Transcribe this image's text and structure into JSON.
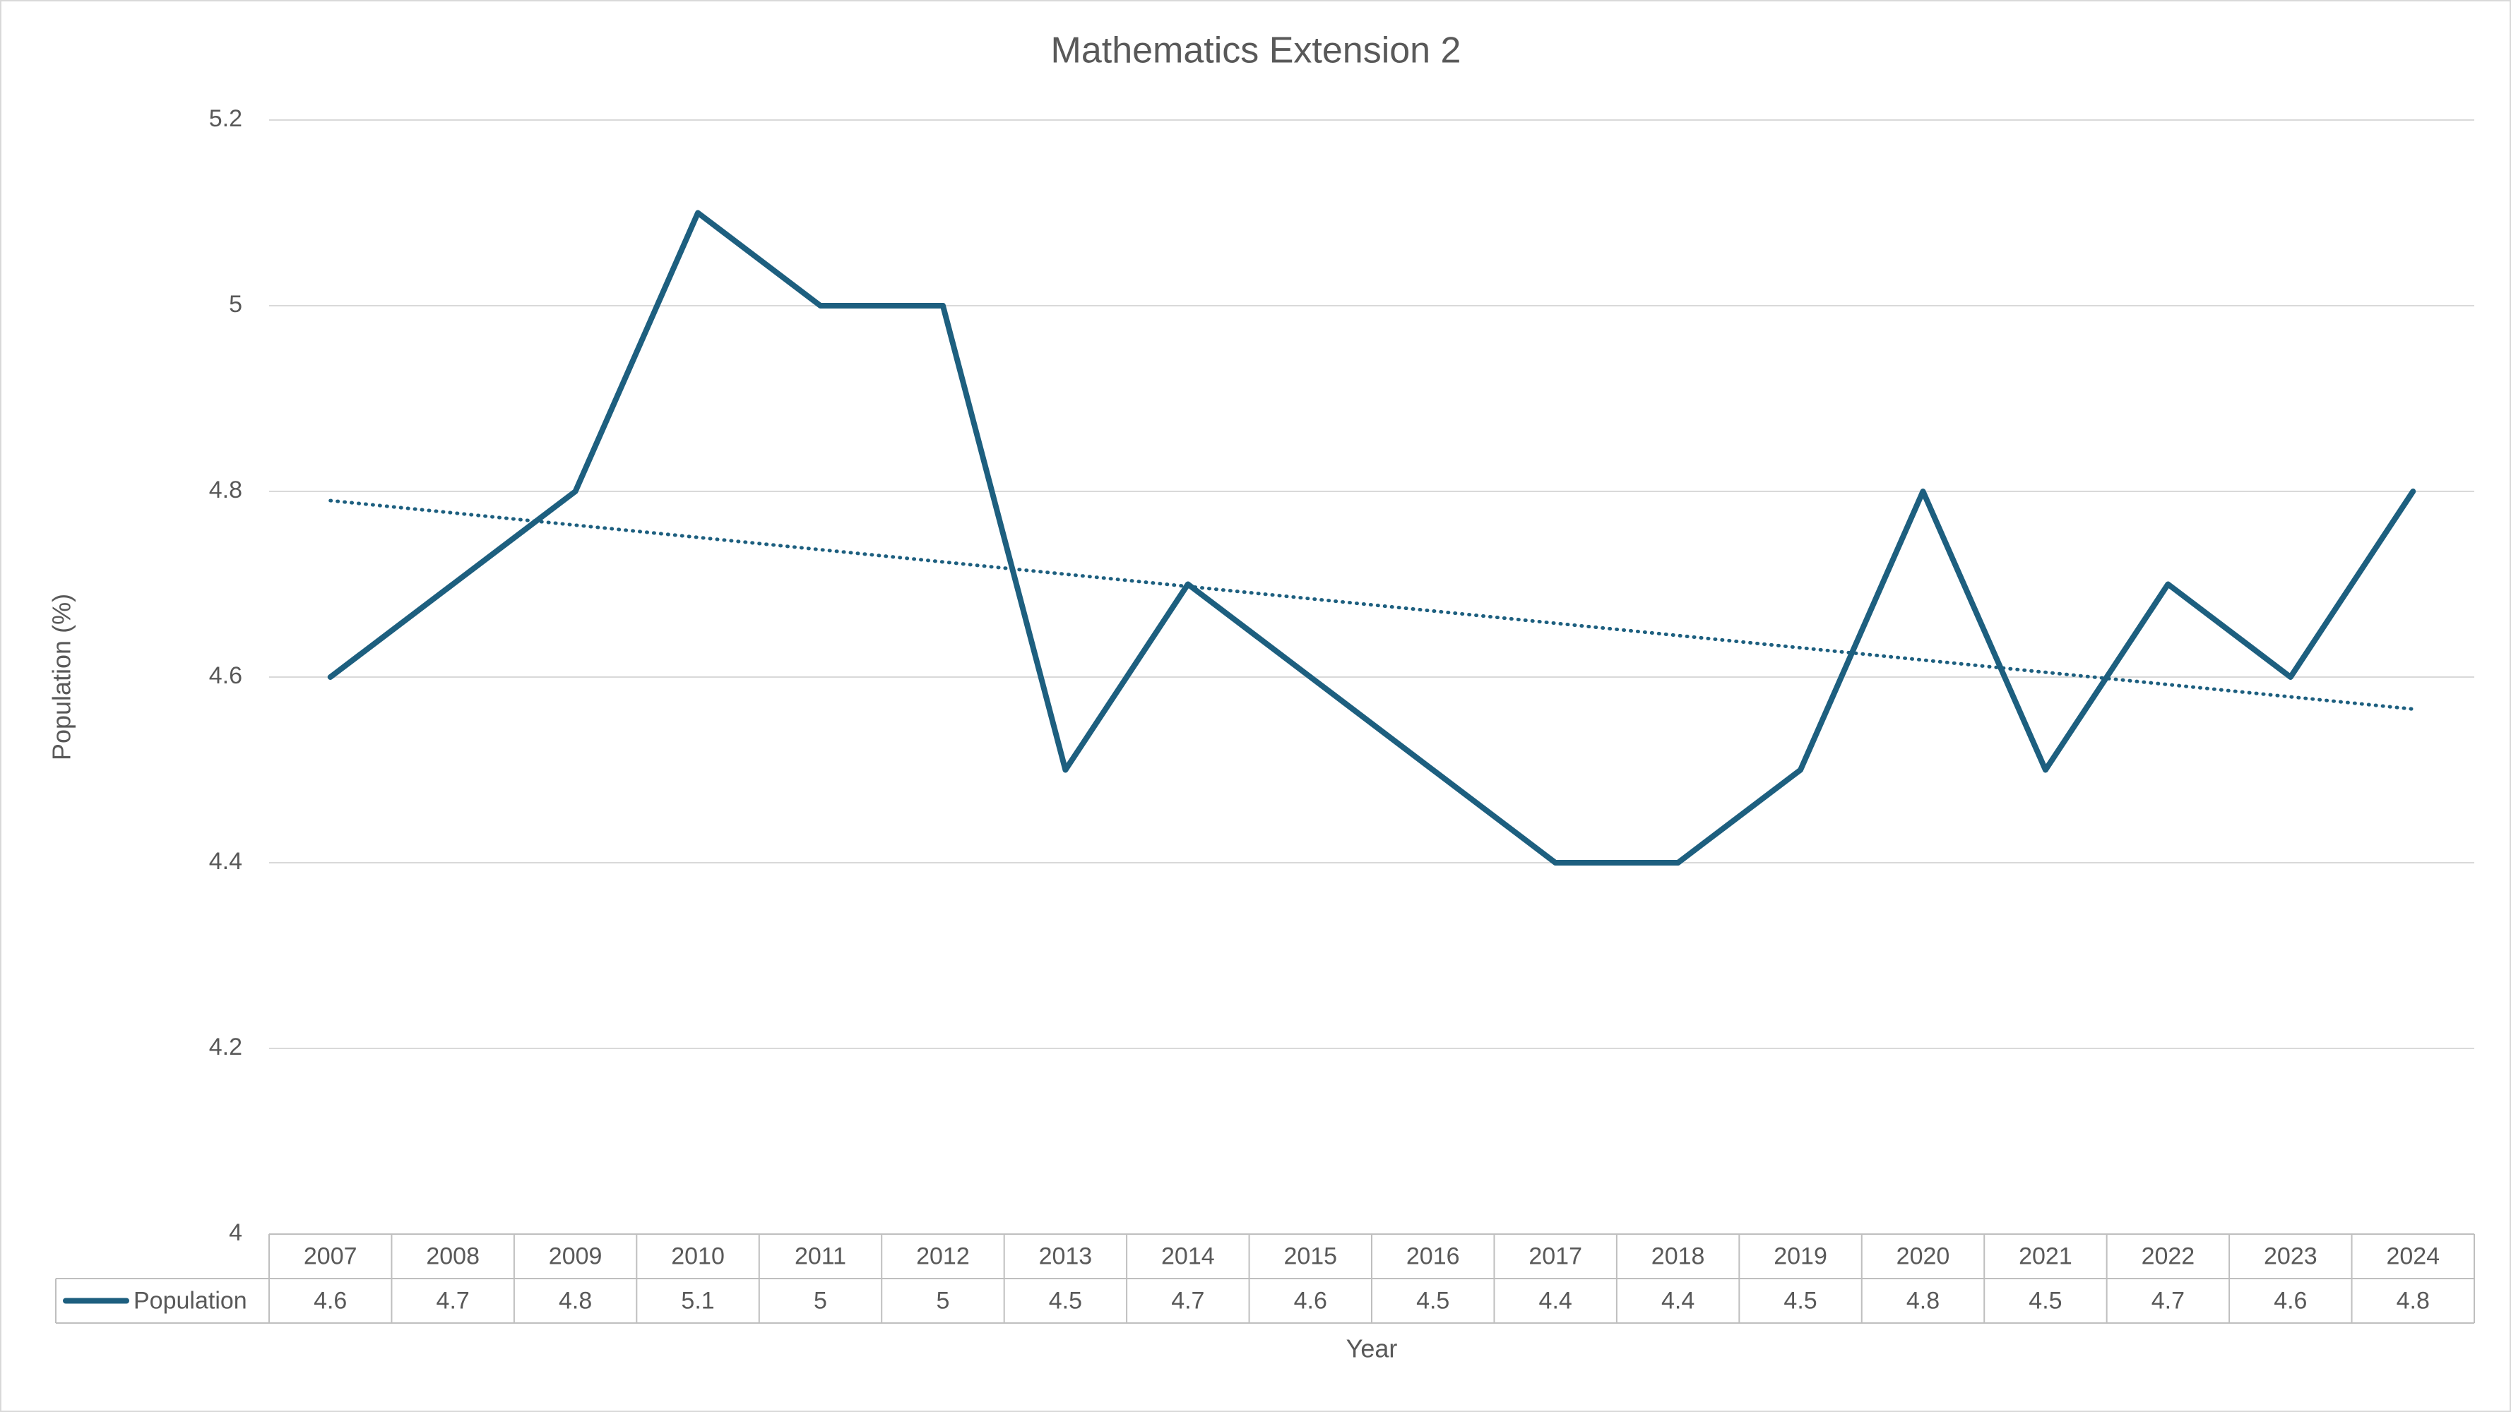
{
  "chart_data": {
    "type": "line",
    "title": "Mathematics Extension 2",
    "x_label": "Year",
    "y_label": "Population (%)",
    "categories": [
      "2007",
      "2008",
      "2009",
      "2010",
      "2011",
      "2012",
      "2013",
      "2014",
      "2015",
      "2016",
      "2017",
      "2018",
      "2019",
      "2020",
      "2021",
      "2022",
      "2023",
      "2024"
    ],
    "series": [
      {
        "name": "Population",
        "color": "#1d5f7f",
        "values": [
          4.6,
          4.7,
          4.8,
          5.1,
          5,
          5,
          4.5,
          4.7,
          4.6,
          4.5,
          4.4,
          4.4,
          4.5,
          4.8,
          4.5,
          4.7,
          4.6,
          4.8
        ]
      }
    ],
    "ylim": [
      4,
      5.2
    ],
    "yticks": [
      4,
      4.2,
      4.4,
      4.6,
      4.8,
      5,
      5.2
    ],
    "grid": true,
    "trendline": "linear",
    "data_table": true
  }
}
